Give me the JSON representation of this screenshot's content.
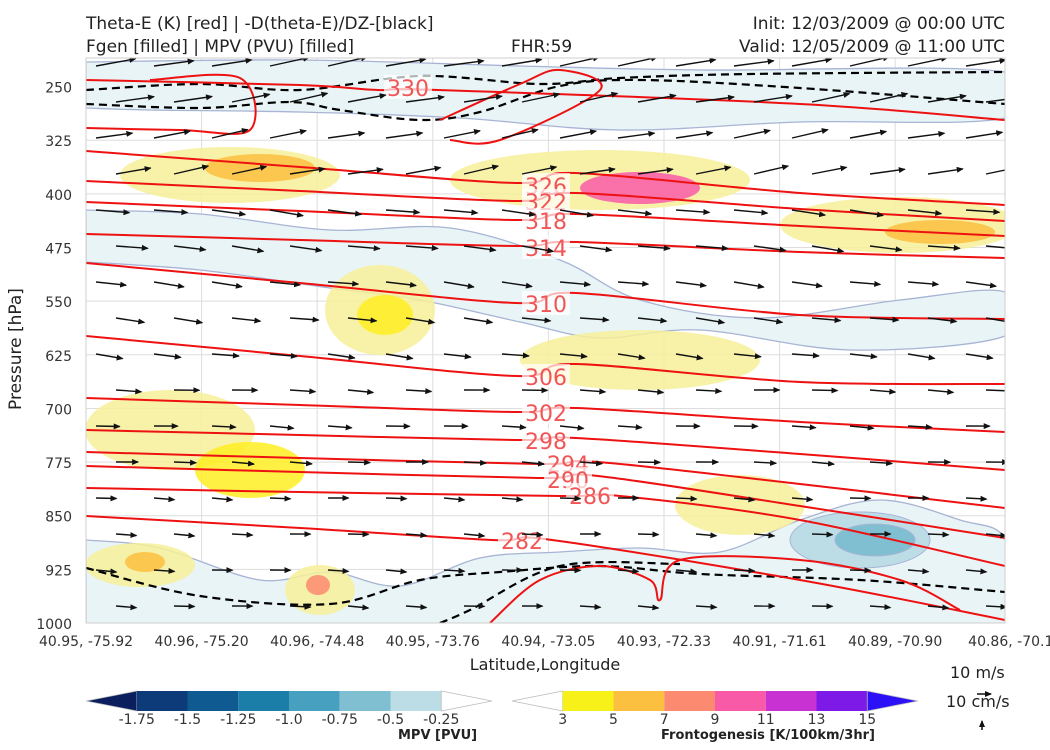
{
  "header": {
    "line1_left": "Theta-E (K) [red] | -D(theta-E)/DZ-[black]",
    "line2_left": "Fgen [filled] | MPV (PVU) [filled]",
    "fhr": "FHR:59",
    "init": "Init: 12/03/2009 @ 00:00 UTC",
    "valid": "Valid: 12/05/2009 @ 11:00 UTC"
  },
  "axes": {
    "ylabel": "Pressure [hPa]",
    "xlabel": "Latitude,Longitude"
  },
  "colors": {
    "theta_e": "#ee1111",
    "theta_e_label": "#f25555",
    "stability": "#000000",
    "mpv_line": "#a8b4d4",
    "mpv_fill": "#e8f4f6",
    "fgen_3": "#ffee22",
    "fgen_5": "#fcc040"
  },
  "mpv_colorbar": {
    "title": "MPV [PVU]",
    "ticks": [
      "-1.75",
      "-1.5",
      "-1.25",
      "-1.0",
      "-0.75",
      "-0.5",
      "-0.25"
    ],
    "colors": [
      "#0b1e5e",
      "#0d3a78",
      "#0f5a90",
      "#1a7ea8",
      "#48a0c0",
      "#80bed2",
      "#bcdde6",
      "#ffffff"
    ]
  },
  "fgen_colorbar": {
    "title": "Frontogenesis [K/100km/3hr]",
    "ticks": [
      "3",
      "5",
      "7",
      "9",
      "11",
      "13",
      "15"
    ],
    "colors": [
      "#ffffff",
      "#f7f019",
      "#fcc040",
      "#fb8a70",
      "#f95aa8",
      "#c832d2",
      "#7e1ae8",
      "#2c10f8"
    ]
  },
  "vector_key": {
    "horizontal": "10 m/s",
    "vertical": "10 cm/s"
  },
  "chart_data": {
    "type": "cross-section",
    "y_scale": "linear, inverted",
    "ylim": [
      1000,
      210
    ],
    "y_ticks": [
      250,
      325,
      400,
      475,
      550,
      625,
      700,
      775,
      850,
      925,
      1000
    ],
    "x_ticks": [
      "40.95, -75.92",
      "40.96, -75.20",
      "40.96, -74.48",
      "40.95, -73.76",
      "40.94, -73.05",
      "40.93, -72.33",
      "40.91, -71.61",
      "40.89, -70.90",
      "40.86, -70.1"
    ],
    "grid": true,
    "theta_e_contours": [
      {
        "label": "330",
        "level": 330
      },
      {
        "label": "326",
        "level": 326
      },
      {
        "label": "322",
        "level": 322
      },
      {
        "label": "318",
        "level": 318
      },
      {
        "label": "314",
        "level": 314
      },
      {
        "label": "310",
        "level": 310
      },
      {
        "label": "306",
        "level": 306
      },
      {
        "label": "302",
        "level": 302
      },
      {
        "label": "298",
        "level": 298
      },
      {
        "label": "294",
        "level": 294
      },
      {
        "label": "290",
        "level": 290
      },
      {
        "label": "286",
        "level": 286
      },
      {
        "label": "282",
        "level": 282
      }
    ]
  }
}
